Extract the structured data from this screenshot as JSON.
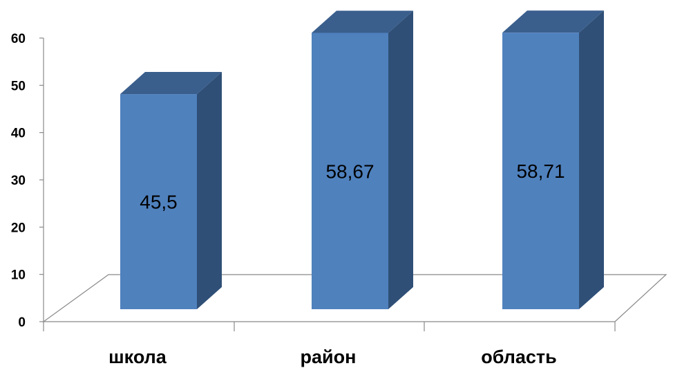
{
  "chart_data": {
    "type": "bar",
    "three_d": true,
    "categories": [
      "школа",
      "район",
      "область"
    ],
    "values": [
      45.5,
      58.67,
      58.71
    ],
    "data_labels": [
      "45,5",
      "58,67",
      "58,71"
    ],
    "y_ticks": [
      "0",
      "10",
      "20",
      "30",
      "40",
      "50",
      "60"
    ],
    "ylim": [
      0,
      60
    ],
    "grid": false,
    "legend": "none",
    "colors": {
      "bar_front": "#4F81BD",
      "bar_side": "#2F4F77",
      "bar_top": "#3A5F8D",
      "axis": "#898989"
    }
  }
}
